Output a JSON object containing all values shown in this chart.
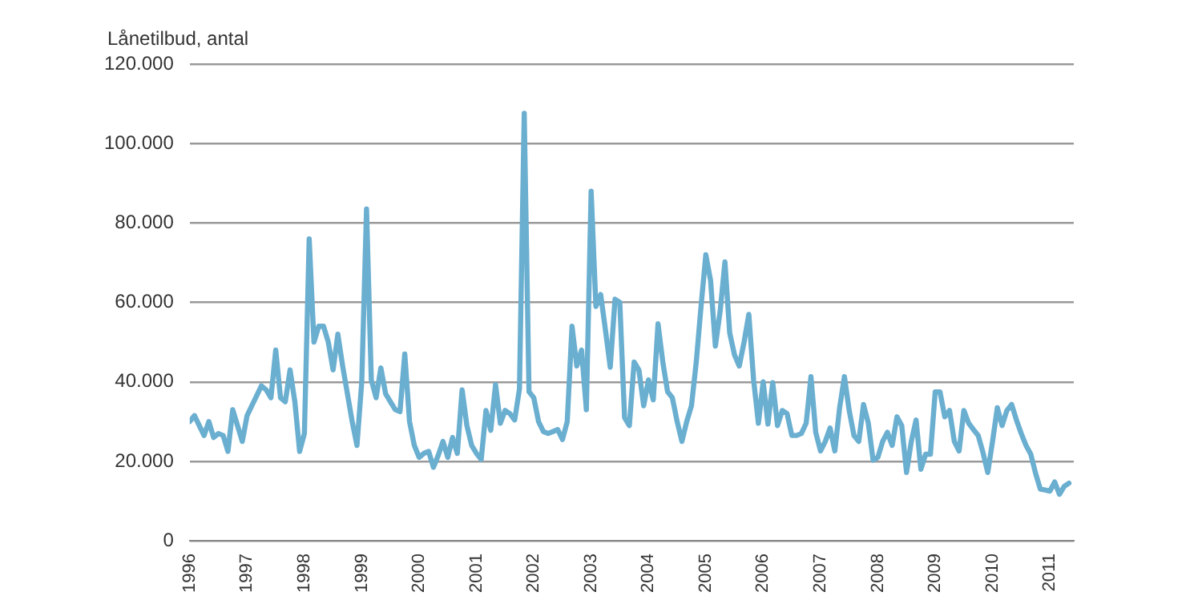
{
  "chart_data": {
    "type": "line",
    "ylabel": "Lånetilbud, antal",
    "grid": "y",
    "legend": false,
    "marker": "none",
    "line_style": "solid",
    "xlim": [
      "1996-01",
      "2011-06"
    ],
    "xticks": [
      "1996",
      "1997",
      "1998",
      "1999",
      "2000",
      "2001",
      "2002",
      "2003",
      "2004",
      "2005",
      "2006",
      "2007",
      "2008",
      "2009",
      "2010",
      "2011"
    ],
    "ylim": [
      0,
      120000
    ],
    "yticks": [
      0,
      {
        "value": 20000,
        "label": "20.000"
      },
      {
        "value": 40000,
        "label": "40.000"
      },
      {
        "value": 60000,
        "label": "60.000"
      },
      {
        "value": 80000,
        "label": "80.000"
      },
      {
        "value": 100000,
        "label": "100.000"
      },
      {
        "value": 120000,
        "label": "120.000"
      }
    ],
    "x": [
      "1996-01",
      "1996-02",
      "1996-03",
      "1996-04",
      "1996-05",
      "1996-06",
      "1996-07",
      "1996-08",
      "1996-09",
      "1996-10",
      "1996-11",
      "1996-12",
      "1997-01",
      "1997-02",
      "1997-03",
      "1997-04",
      "1997-05",
      "1997-06",
      "1997-07",
      "1997-08",
      "1997-09",
      "1997-10",
      "1997-11",
      "1997-12",
      "1998-01",
      "1998-02",
      "1998-03",
      "1998-04",
      "1998-05",
      "1998-06",
      "1998-07",
      "1998-08",
      "1998-09",
      "1998-10",
      "1998-11",
      "1998-12",
      "1999-01",
      "1999-02",
      "1999-03",
      "1999-04",
      "1999-05",
      "1999-06",
      "1999-07",
      "1999-08",
      "1999-09",
      "1999-10",
      "1999-11",
      "1999-12",
      "2000-01",
      "2000-02",
      "2000-03",
      "2000-04",
      "2000-05",
      "2000-06",
      "2000-07",
      "2000-08",
      "2000-09",
      "2000-10",
      "2000-11",
      "2000-12",
      "2001-01",
      "2001-02",
      "2001-03",
      "2001-04",
      "2001-05",
      "2001-06",
      "2001-07",
      "2001-08",
      "2001-09",
      "2001-10",
      "2001-11",
      "2001-12",
      "2002-01",
      "2002-02",
      "2002-03",
      "2002-04",
      "2002-05",
      "2002-06",
      "2002-07",
      "2002-08",
      "2002-09",
      "2002-10",
      "2002-11",
      "2002-12",
      "2003-01",
      "2003-02",
      "2003-03",
      "2003-04",
      "2003-05",
      "2003-06",
      "2003-07",
      "2003-08",
      "2003-09",
      "2003-10",
      "2003-11",
      "2003-12",
      "2004-01",
      "2004-02",
      "2004-03",
      "2004-04",
      "2004-05",
      "2004-06",
      "2004-07",
      "2004-08",
      "2004-09",
      "2004-10",
      "2004-11",
      "2004-12",
      "2005-01",
      "2005-02",
      "2005-03",
      "2005-04",
      "2005-05",
      "2005-06",
      "2005-07",
      "2005-08",
      "2005-09",
      "2005-10",
      "2005-11",
      "2005-12",
      "2006-01",
      "2006-02",
      "2006-03",
      "2006-04",
      "2006-05",
      "2006-06",
      "2006-07",
      "2006-08",
      "2006-09",
      "2006-10",
      "2006-11",
      "2006-12",
      "2007-01",
      "2007-02",
      "2007-03",
      "2007-04",
      "2007-05",
      "2007-06",
      "2007-07",
      "2007-08",
      "2007-09",
      "2007-10",
      "2007-11",
      "2007-12",
      "2008-01",
      "2008-02",
      "2008-03",
      "2008-04",
      "2008-05",
      "2008-06",
      "2008-07",
      "2008-08",
      "2008-09",
      "2008-10",
      "2008-11",
      "2008-12",
      "2009-01",
      "2009-02",
      "2009-03",
      "2009-04",
      "2009-05",
      "2009-06",
      "2009-07",
      "2009-08",
      "2009-09",
      "2009-10",
      "2009-11",
      "2009-12",
      "2010-01",
      "2010-02",
      "2010-03",
      "2010-04",
      "2010-05",
      "2010-06",
      "2010-07",
      "2010-08",
      "2010-09",
      "2010-10",
      "2010-11",
      "2010-12",
      "2011-01",
      "2011-02",
      "2011-03",
      "2011-04",
      "2011-05"
    ],
    "series": [
      {
        "color": "#6aaed0",
        "values": [
          30000,
          31500,
          29000,
          26500,
          30000,
          26000,
          27000,
          26500,
          22500,
          33000,
          29000,
          25000,
          31500,
          34000,
          36500,
          39000,
          38000,
          36000,
          48000,
          36000,
          35000,
          43000,
          35000,
          22500,
          27000,
          76000,
          50000,
          54000,
          54000,
          50000,
          43000,
          52000,
          44000,
          37000,
          30000,
          24000,
          40000,
          83500,
          40500,
          36000,
          43500,
          37000,
          35000,
          33000,
          32500,
          47000,
          30000,
          24000,
          21000,
          22000,
          22500,
          18500,
          21500,
          25000,
          21000,
          26000,
          22000,
          38000,
          29000,
          24000,
          22000,
          20500,
          32800,
          27800,
          39300,
          29600,
          32800,
          32000,
          30400,
          38200,
          107600,
          37500,
          36000,
          30000,
          27500,
          27000,
          27500,
          28000,
          25500,
          30000,
          54000,
          44000,
          48000,
          33000,
          88000,
          59000,
          62000,
          53000,
          43700,
          60800,
          60000,
          31000,
          29000,
          45000,
          43000,
          34000,
          40500,
          35500,
          54600,
          45000,
          37500,
          36000,
          30000,
          25000,
          30000,
          34000,
          45000,
          59000,
          72000,
          65500,
          49000,
          57800,
          70200,
          52300,
          46800,
          44000,
          50000,
          57000,
          40500,
          29600,
          40000,
          29400,
          39800,
          29000,
          32800,
          32000,
          26500,
          26500,
          27000,
          29600,
          41300,
          27300,
          22600,
          25000,
          28400,
          22600,
          33500,
          41300,
          32800,
          26500,
          25000,
          34300,
          29600,
          20300,
          21000,
          25000,
          27300,
          24000,
          31200,
          29000,
          17200,
          25000,
          30400,
          18000,
          21800,
          21800,
          37500,
          37500,
          31200,
          32800,
          25000,
          22600,
          32800,
          29600,
          28000,
          26500,
          22200,
          17200,
          25000,
          33500,
          29000,
          32800,
          34300,
          30400,
          27000,
          24000,
          21800,
          17000,
          13000,
          12800,
          12500,
          14800,
          11700,
          13700,
          14500
        ]
      }
    ]
  }
}
